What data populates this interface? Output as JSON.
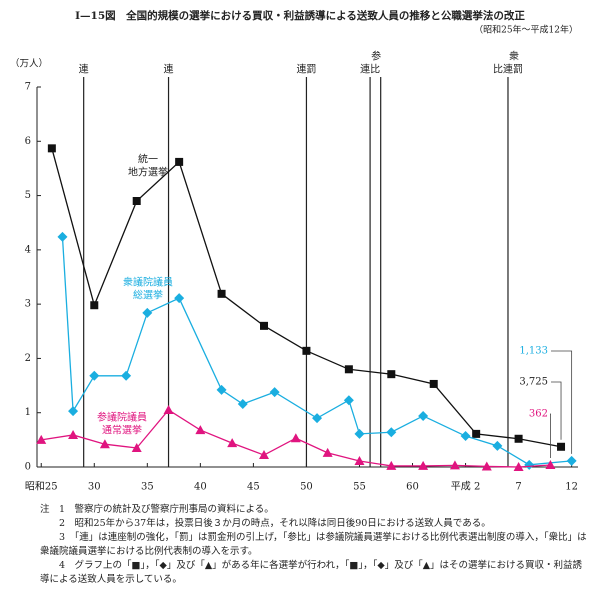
{
  "chart_data": {
    "type": "line",
    "title": "Ⅰ—15図　全国的規模の選挙における買収・利益誘導による送致人員の推移と公職選挙法の改正",
    "subtitle": "（昭和25年～平成12年）",
    "ylabel": "（万人）",
    "xlim": [
      24.6,
      75.6
    ],
    "ylim": [
      0,
      7
    ],
    "yticks": [
      0,
      1,
      2,
      3,
      4,
      5,
      6,
      7
    ],
    "xticks": [
      {
        "value": 25,
        "label": "昭和25"
      },
      30,
      35,
      40,
      45,
      50,
      55,
      60,
      {
        "value": 65,
        "label": "平成 2"
      },
      {
        "value": 70,
        "label": "7"
      },
      {
        "value": 75,
        "label": "12"
      }
    ],
    "series": [
      {
        "name": [
          "統一",
          "地方選挙"
        ],
        "color": "#111111",
        "marker": "square",
        "x": [
          26,
          30,
          34,
          38,
          42,
          46,
          50,
          54,
          58,
          62,
          66,
          70,
          74
        ],
        "values": [
          5.87,
          2.98,
          4.9,
          5.62,
          3.19,
          2.6,
          2.14,
          1.8,
          1.71,
          1.53,
          0.61,
          0.52,
          0.3725
        ],
        "value_labels": [
          null,
          null,
          null,
          null,
          null,
          null,
          null,
          null,
          null,
          null,
          null,
          null,
          "3,725"
        ]
      },
      {
        "name": [
          "衆議院議員",
          "総選挙"
        ],
        "color": "#1aaee0",
        "marker": "diamond",
        "x": [
          27,
          28,
          30,
          33,
          35,
          38,
          42,
          44,
          47,
          51,
          54,
          55,
          58,
          61,
          65,
          68,
          71,
          75
        ],
        "values": [
          4.24,
          1.03,
          1.68,
          1.68,
          2.84,
          3.11,
          1.42,
          1.16,
          1.38,
          0.9,
          1.23,
          0.61,
          0.64,
          0.94,
          0.57,
          0.39,
          0.04,
          0.1133
        ],
        "value_labels": [
          null,
          null,
          null,
          null,
          null,
          null,
          null,
          null,
          null,
          null,
          null,
          null,
          null,
          null,
          null,
          null,
          null,
          "1,133"
        ]
      },
      {
        "name": [
          "参議院議員",
          "通常選挙"
        ],
        "color": "#e0147f",
        "marker": "triangle",
        "x": [
          25,
          28,
          31,
          34,
          37,
          40,
          43,
          46,
          49,
          52,
          55,
          58,
          61,
          64,
          67,
          70,
          73
        ],
        "values": [
          0.5,
          0.59,
          0.42,
          0.35,
          1.05,
          0.68,
          0.44,
          0.22,
          0.53,
          0.26,
          0.11,
          0.02,
          0.02,
          0.03,
          0.01,
          0.0,
          0.0362
        ],
        "value_labels": [
          null,
          null,
          null,
          null,
          null,
          null,
          null,
          null,
          null,
          null,
          null,
          null,
          null,
          null,
          null,
          null,
          "362"
        ]
      }
    ],
    "revisions": [
      {
        "x": 29,
        "label": [
          "連"
        ]
      },
      {
        "x": 37,
        "label": [
          "連"
        ]
      },
      {
        "x": 50,
        "label": [
          "連罰"
        ]
      },
      {
        "x": 56,
        "label": [
          "参",
          "連比"
        ]
      },
      {
        "x": 57
      },
      {
        "x": 69,
        "label": [
          "衆",
          "比連罰"
        ]
      }
    ],
    "notes": [
      "注　1　警察庁の統計及び警察庁刑事局の資料による。",
      "　　2　昭和25年から37年は，投票日後３か月の時点，それ以降は同日後90日における送致人員である。",
      "　　3　「連」は連座制の強化，「罰」は罰金刑の引上げ，「参比」は参議院議員選挙における比例代表選出制度の導入，「衆比」は衆議院議員選挙における比例代表制の導入を示す。",
      "　　4　グラフ上の「■」，「◆」及び「▲」がある年に各選挙が行われ，「■」，「◆」及び「▲」はその選挙における買収・利益誘導による送致人員を示している。"
    ]
  }
}
